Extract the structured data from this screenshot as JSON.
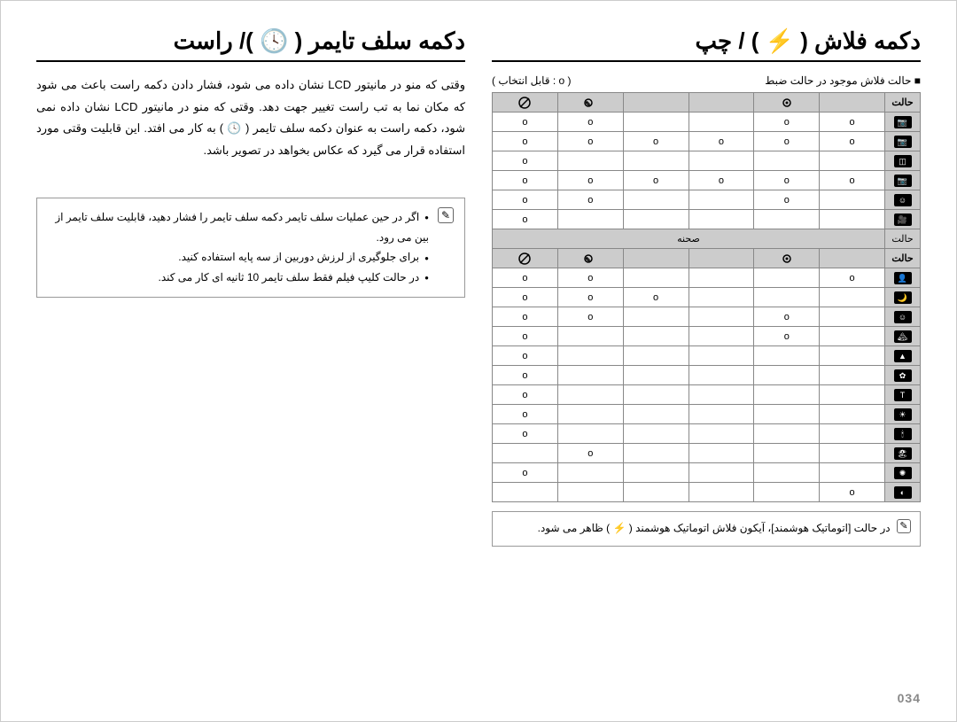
{
  "pageNumber": "034",
  "rightColumn": {
    "heading": "دكمه فلاش ( ⚡ ) / چپ",
    "subLabelRight": "■ حالت فلاش موجود در حالت ضبط",
    "subLabelLeft": "( o : قابل انتخاب )",
    "table": {
      "modeHeader": "حالت",
      "flashHeaders": [
        "auto-flash",
        "redeye",
        "fill",
        "slow",
        "redeye-fix",
        "off"
      ],
      "rows1": [
        {
          "mode": "camera",
          "cells": [
            "o",
            "o",
            "",
            "",
            "o",
            "o"
          ]
        },
        {
          "mode": "red-cam",
          "cells": [
            "o",
            "o",
            "o",
            "o",
            "o",
            "o"
          ]
        },
        {
          "mode": "dual",
          "cells": [
            "",
            "",
            "",
            "",
            "",
            "o"
          ]
        },
        {
          "mode": "smart-cam",
          "cells": [
            "o",
            "o",
            "o",
            "o",
            "o",
            "o"
          ]
        },
        {
          "mode": "smile",
          "cells": [
            "",
            "o",
            "",
            "",
            "o",
            "o"
          ]
        },
        {
          "mode": "movie",
          "cells": [
            "",
            "",
            "",
            "",
            "",
            "o"
          ]
        }
      ],
      "sceneLabel": "صحنه",
      "rows2": [
        {
          "mode": "portrait",
          "cells": [
            "o",
            "",
            "",
            "",
            "o",
            "o"
          ]
        },
        {
          "mode": "night",
          "cells": [
            "",
            "",
            "",
            "o",
            "o",
            "o"
          ]
        },
        {
          "mode": "kids",
          "cells": [
            "",
            "o",
            "",
            "",
            "o",
            "o"
          ]
        },
        {
          "mode": "landscape",
          "cells": [
            "",
            "o",
            "",
            "",
            "",
            "o"
          ]
        },
        {
          "mode": "mountain",
          "cells": [
            "",
            "",
            "",
            "",
            "",
            "o"
          ]
        },
        {
          "mode": "macro",
          "cells": [
            "",
            "",
            "",
            "",
            "",
            "o"
          ]
        },
        {
          "mode": "text",
          "cells": [
            "",
            "",
            "",
            "",
            "",
            "o"
          ]
        },
        {
          "mode": "sunset",
          "cells": [
            "",
            "",
            "",
            "",
            "",
            "o"
          ]
        },
        {
          "mode": "candle",
          "cells": [
            "",
            "",
            "",
            "",
            "",
            "o"
          ]
        },
        {
          "mode": "beach",
          "cells": [
            "",
            "",
            "",
            "",
            "o",
            ""
          ]
        },
        {
          "mode": "fireworks",
          "cells": [
            "",
            "",
            "",
            "",
            "",
            "o"
          ]
        },
        {
          "mode": "backlight",
          "cells": [
            "o",
            "",
            "",
            "",
            "",
            ""
          ]
        }
      ]
    },
    "footnote": "در حالت [اتوماتیک هوشمند]، آیکون فلاش اتوماتیک هوشمند ( ⚡ ) ظاهر می شود."
  },
  "leftColumn": {
    "heading": "دكمه سلف تايمر ( 🕓 )/ راست",
    "para1": "وقتی که منو در مانیتور LCD نشان داده می شود، فشار دادن دکمه راست باعث می شود که مکان نما به تب راست تغییر جهت دهد. وقتی که منو در مانیتور LCD نشان داده نمی شود، دکمه راست به عنوان دکمه سلف تایمر ( 🕓 ) به کار می افتد. این قابلیت وقتی مورد استفاده قرار می گیرد که عکاس بخواهد در تصویر باشد.",
    "bullets": [
      "اگر در حین عملیات سلف تایمر دکمه سلف تایمر را فشار دهید، قابلیت سلف تایمر از بین می رود.",
      "برای جلوگیری از لرزش دوربین از سه پایه استفاده کنید.",
      "در حالت کلیپ فیلم فقط سلف تایمر 10 ثانیه ای کار می کند."
    ]
  },
  "colors": {
    "headerBg": "#cccccc",
    "border": "#888888",
    "text": "#000000",
    "pageNum": "#888888"
  }
}
